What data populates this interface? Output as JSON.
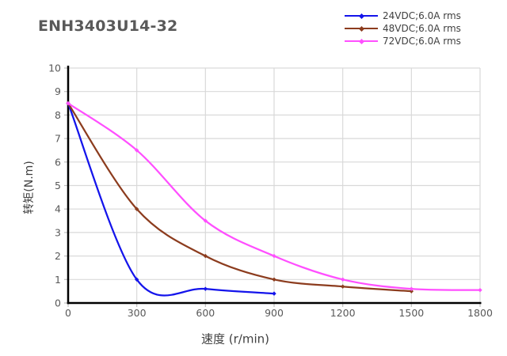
{
  "chart_data": {
    "type": "line",
    "title": "ENH3403U14-32",
    "x_label": "速度 (r/min)",
    "y_label": "转矩(N.m)",
    "x_range": [
      0,
      1800
    ],
    "y_range": [
      0,
      10
    ],
    "x_ticks": [
      0,
      300,
      600,
      900,
      1200,
      1500,
      1800
    ],
    "y_ticks": [
      0,
      1,
      2,
      3,
      4,
      5,
      6,
      7,
      8,
      9,
      10
    ],
    "grid": true,
    "legend_position": "top-right",
    "line_style": "smooth",
    "marker": "diamond",
    "series": [
      {
        "name": "24VDC;6.0A rms",
        "color": "#1414EB",
        "x": [
          0,
          300,
          600,
          900
        ],
        "y": [
          8.5,
          1.0,
          0.6,
          0.4
        ]
      },
      {
        "name": "48VDC;6.0A rms",
        "color": "#8C3C1E",
        "x": [
          0,
          300,
          600,
          900,
          1200,
          1500
        ],
        "y": [
          8.5,
          4.0,
          2.0,
          1.0,
          0.7,
          0.5
        ]
      },
      {
        "name": "72VDC;6.0A rms",
        "color": "#FF4FFF",
        "x": [
          0,
          300,
          600,
          900,
          1200,
          1500,
          1800
        ],
        "y": [
          8.5,
          6.5,
          3.5,
          2.0,
          1.0,
          0.6,
          0.55
        ]
      }
    ],
    "colors": {
      "axis": "#000000",
      "grid": "#D9D9D9",
      "tick_mark": "#BFBFBF",
      "tick_text": "#595959",
      "title_text": "#595959",
      "axis_label_text": "#404040",
      "background": "#FFFFFF"
    }
  }
}
